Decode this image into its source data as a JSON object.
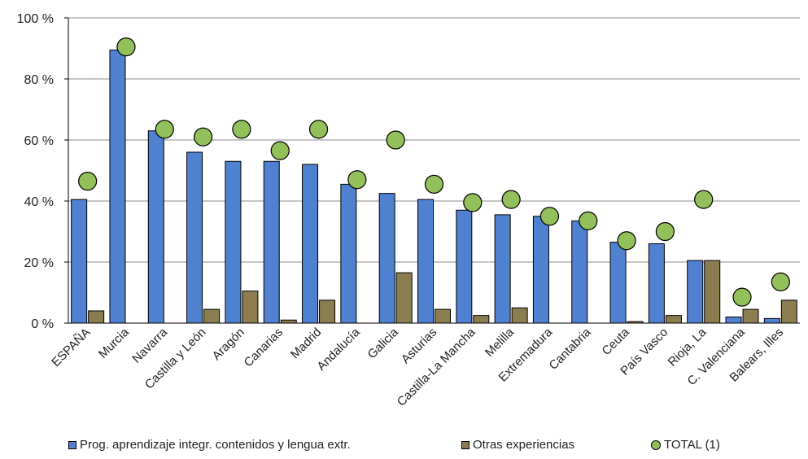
{
  "chart_data": {
    "type": "bar",
    "categories": [
      "ESPAÑA",
      "Murcia",
      "Navarra",
      "Castilla y León",
      "Aragón",
      "Canarias",
      "Madrid",
      "Andalucía",
      "Galicia",
      "Asturias",
      "Castilla-La Mancha",
      "Melilla",
      "Extremadura",
      "Cantabria",
      "Ceuta",
      "País Vasco",
      "Rioja, La",
      "C. Valenciana",
      "Balears, Illes"
    ],
    "series": [
      {
        "name": "Prog. aprendizaje integr. contenidos y lengua extr.",
        "kind": "bar",
        "color": "#4f81d0",
        "values": [
          40.5,
          89.5,
          63,
          56,
          53,
          53,
          52,
          45.5,
          42.5,
          40.5,
          37,
          35.5,
          35,
          33.5,
          26.5,
          26,
          20.5,
          2,
          1.5
        ]
      },
      {
        "name": "Otras experiencias",
        "kind": "bar",
        "color": "#8b7d4f",
        "values": [
          4,
          0,
          0,
          4.5,
          10.5,
          1,
          7.5,
          0,
          16.5,
          4.5,
          2.5,
          5,
          0,
          0,
          0.5,
          2.5,
          20.5,
          4.5,
          7.5
        ]
      },
      {
        "name": "TOTAL (1)",
        "kind": "dot",
        "color": "#92c05a",
        "values": [
          46.5,
          90.5,
          63.5,
          61,
          63.5,
          56.5,
          63.5,
          47,
          60,
          45.5,
          39.5,
          40.5,
          35,
          33.5,
          27,
          30,
          40.5,
          8.5,
          13.5
        ]
      }
    ],
    "y_ticks": [
      "0 %",
      "20 %",
      "40 %",
      "60 %",
      "80 %",
      "100 %"
    ],
    "ylim": [
      0,
      100
    ],
    "grid": true,
    "legend_position": "bottom"
  }
}
